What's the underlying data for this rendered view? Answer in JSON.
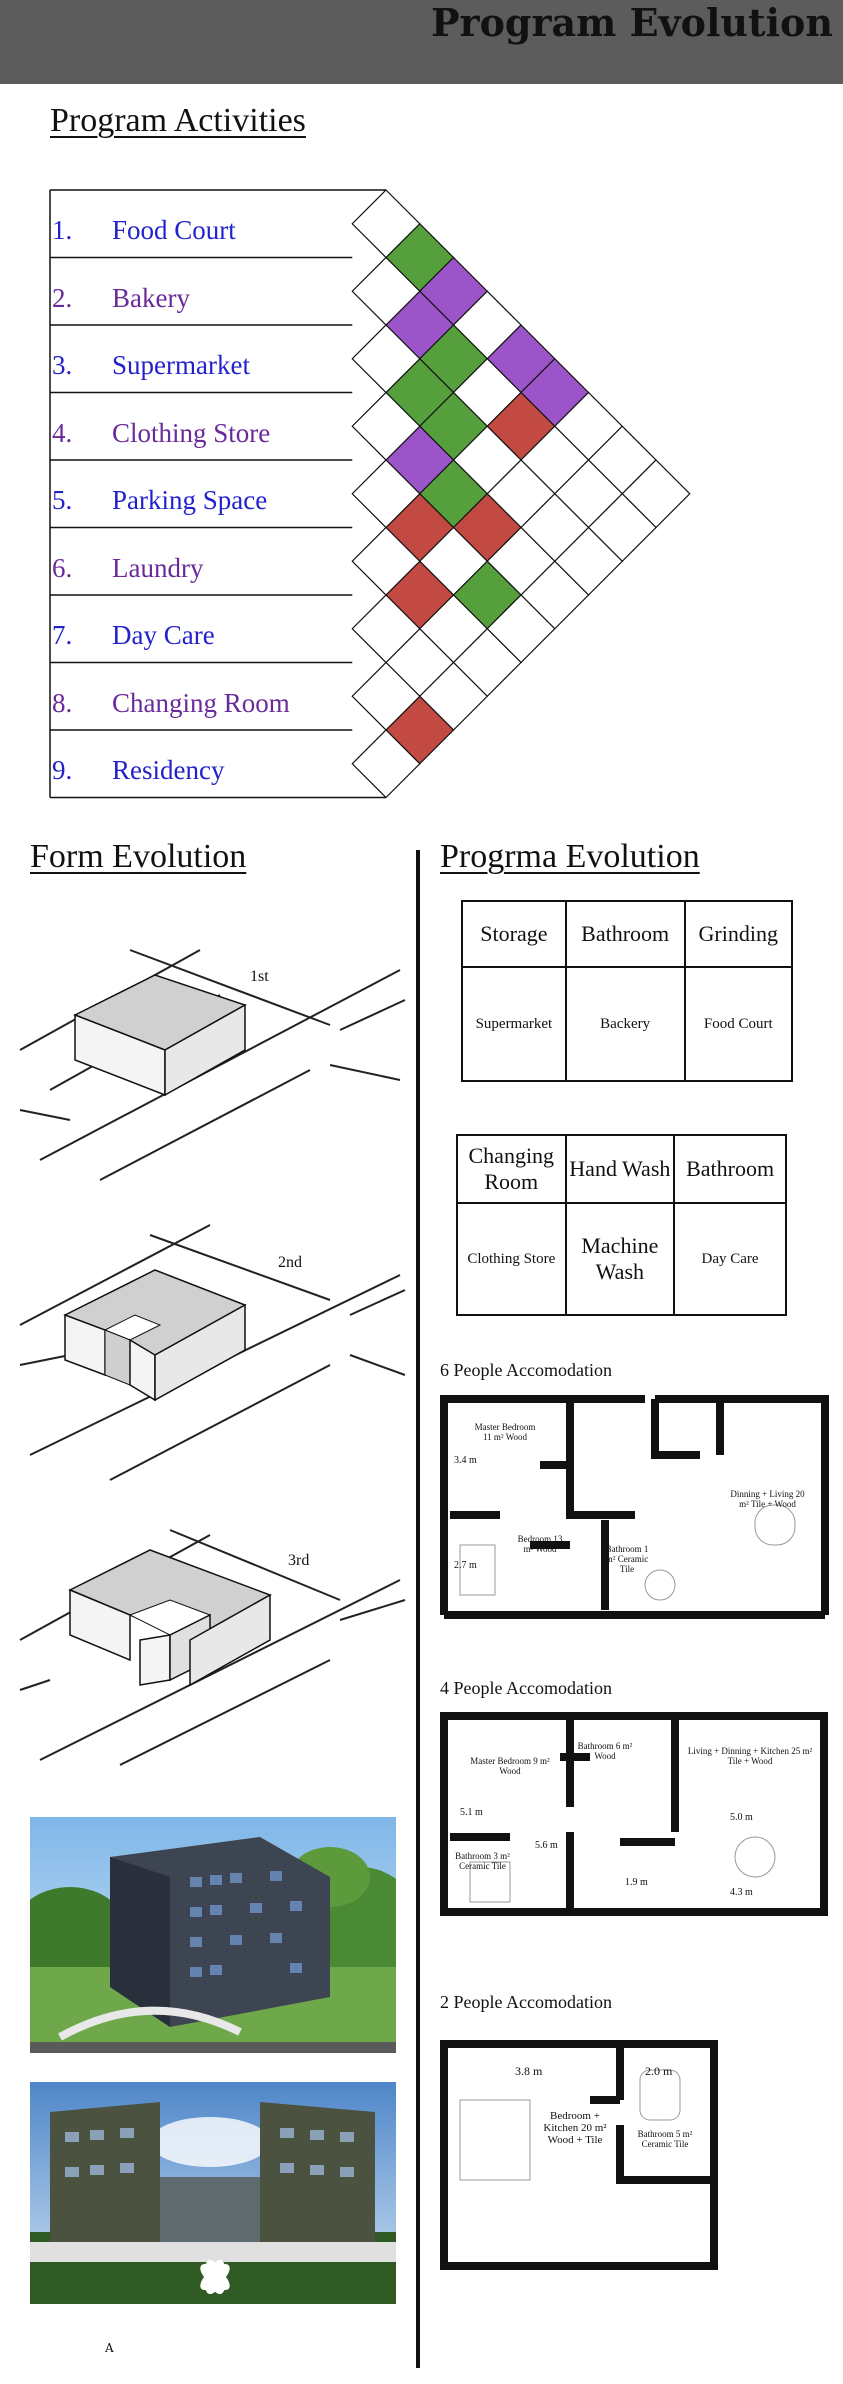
{
  "header": {
    "title": "Program Evolution"
  },
  "activities": {
    "title": "Program Activities",
    "items": [
      {
        "num": "1.",
        "label": "Food Court"
      },
      {
        "num": "2.",
        "label": "Bakery"
      },
      {
        "num": "3.",
        "label": "Supermarket"
      },
      {
        "num": "4.",
        "label": "Clothing Store"
      },
      {
        "num": "5.",
        "label": "Parking Space"
      },
      {
        "num": "6.",
        "label": "Laundry"
      },
      {
        "num": "7.",
        "label": "Day Care"
      },
      {
        "num": "8.",
        "label": "Changing Room"
      },
      {
        "num": "9.",
        "label": "Residency"
      }
    ],
    "colors": {
      "green": "#55a03c",
      "purple": "#9b55c8",
      "red": "#c24a42",
      "label_blue": "#2222cc",
      "label_purple": "#6a2a9a"
    },
    "matrix": [
      {
        "pair": [
          1,
          2
        ],
        "color": "green"
      },
      {
        "pair": [
          2,
          3
        ],
        "color": "purple"
      },
      {
        "pair": [
          1,
          3
        ],
        "color": "purple"
      },
      {
        "pair": [
          3,
          4
        ],
        "color": "green"
      },
      {
        "pair": [
          2,
          4
        ],
        "color": "green"
      },
      {
        "pair": [
          4,
          5
        ],
        "color": "purple"
      },
      {
        "pair": [
          3,
          5
        ],
        "color": "green"
      },
      {
        "pair": [
          1,
          5
        ],
        "color": "purple"
      },
      {
        "pair": [
          5,
          6
        ],
        "color": "red"
      },
      {
        "pair": [
          4,
          6
        ],
        "color": "green"
      },
      {
        "pair": [
          2,
          6
        ],
        "color": "red"
      },
      {
        "pair": [
          1,
          6
        ],
        "color": "purple"
      },
      {
        "pair": [
          6,
          7
        ],
        "color": "red"
      },
      {
        "pair": [
          4,
          7
        ],
        "color": "red"
      },
      {
        "pair": [
          5,
          8
        ],
        "color": "green"
      },
      {
        "pair": [
          8,
          9
        ],
        "color": "red"
      }
    ]
  },
  "form_evolution": {
    "title": "Form Evolution",
    "stages": [
      "1st",
      "2nd",
      "3rd"
    ],
    "footnote": "A"
  },
  "program_evolution": {
    "title": "Progrma Evolution",
    "table1": {
      "headers": [
        "Storage",
        "Bathroom",
        "Grinding"
      ],
      "cells": [
        "Supermarket",
        "Backery",
        "Food Court"
      ]
    },
    "table2": {
      "headers": [
        "Changing Room",
        "Hand Wash",
        "Bathroom"
      ],
      "cells": [
        "Clothing Store",
        "Machine Wash",
        "Day Care"
      ]
    },
    "plans": [
      {
        "title": "6 People Accomodation",
        "rooms": [
          "Master Bedroom 11 m² Wood",
          "Bedroom 13 m² Wood",
          "Bathroom 1 m² Ceramic Tile",
          "Dinning + Living 20 m² Tile + Wood"
        ],
        "dims": [
          "3.4 m",
          "2.7 m"
        ]
      },
      {
        "title": "4 People Accomodation",
        "rooms": [
          "Master Bedroom 9 m² Wood",
          "Bathroom 6 m² Wood",
          "Living + Dinning + Kitchen 25 m² Tile + Wood",
          "Bathroom 3 m² Ceramic Tile"
        ],
        "dims": [
          "5.1 m",
          "5.6 m",
          "1.9 m",
          "5.0 m",
          "4.3 m"
        ]
      },
      {
        "title": "2 People Accomodation",
        "rooms": [
          "Bedroom + Kitchen 20 m² Wood + Tile",
          "Bathroom 5 m² Ceramic Tile"
        ],
        "dims": [
          "3.8 m",
          "2.0 m"
        ]
      }
    ]
  }
}
